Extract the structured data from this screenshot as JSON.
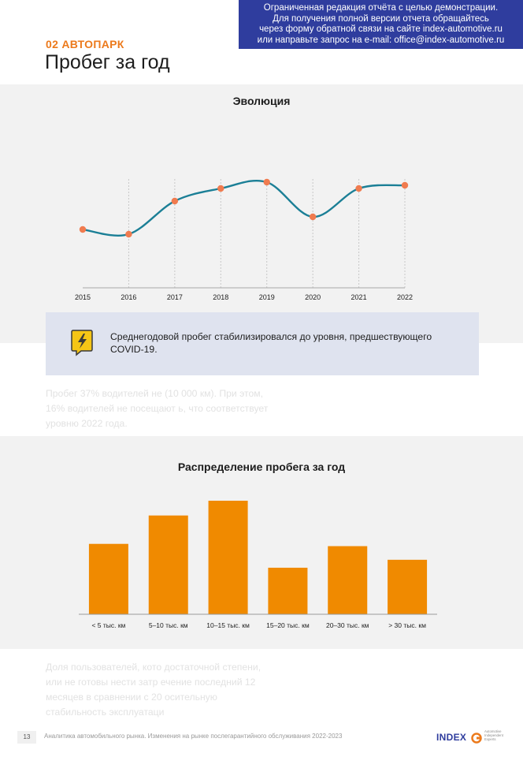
{
  "banner": {
    "lines": [
      "Ограниченная редакция отчёта с целью демонстрации.",
      "Для получения полной версии отчета обращайтесь",
      "через форму обратной связи на сайте index-automotive.ru",
      "или направьте запрос на e-mail: office@index-automotive.ru"
    ]
  },
  "header": {
    "section_label": "02 АВТОПАРК",
    "title": "Пробег за год"
  },
  "chart_data": [
    {
      "type": "line",
      "title": "Эволюция",
      "x": [
        "2015",
        "2016",
        "2017",
        "2018",
        "2019",
        "2020",
        "2021",
        "2022"
      ],
      "values": [
        0.37,
        0.34,
        0.55,
        0.63,
        0.67,
        0.45,
        0.63,
        0.65
      ],
      "ylim": [
        0,
        1
      ],
      "y_axis_labels": false,
      "grid": "vertical",
      "line_color": "#1b7f96",
      "marker_color": "#f07b4f"
    },
    {
      "type": "bar",
      "title": "Распределение пробега за год",
      "categories": [
        "< 5 тыс. км",
        "5–10 тыс. км",
        "10–15 тыс. км",
        "15–20 тыс. км",
        "20–30 тыс. км",
        "> 30 тыс. км"
      ],
      "values": [
        62,
        87,
        100,
        41,
        60,
        48
      ],
      "ylim": [
        0,
        100
      ],
      "bar_color": "#f08a00"
    }
  ],
  "callout": {
    "icon": "lightning-chat-icon",
    "text": "Среднегодовой пробег стабилизировался до уровня, предшествующего COVID-19."
  },
  "para1": {
    "lines": [
      "Пробег 37% водителей не                                                           (10 000 км). При этом,",
      "16% водителей не посещают                                                         ь, что соответствует",
      "уровню 2022 года."
    ]
  },
  "para2": {
    "lines": [
      "Доля пользователей, кото                                                              достаточной степени,",
      "или не готовы нести затр                                                              ечение последний 12",
      "месяцев в сравнении с 20                                                             осительную",
      "стабильность эксплуатаци"
    ]
  },
  "footer": {
    "page_number": "13",
    "text": "Аналитика автомобильного рынка. Изменения на рынке послегарантийного обслуживания 2022-2023",
    "logo_word": "INDEX",
    "logo_tagline": [
      "Automotive",
      "Independent",
      "Experts"
    ]
  },
  "colors": {
    "brand_blue": "#2f3d9e",
    "accent_orange": "#ec7a1c"
  }
}
